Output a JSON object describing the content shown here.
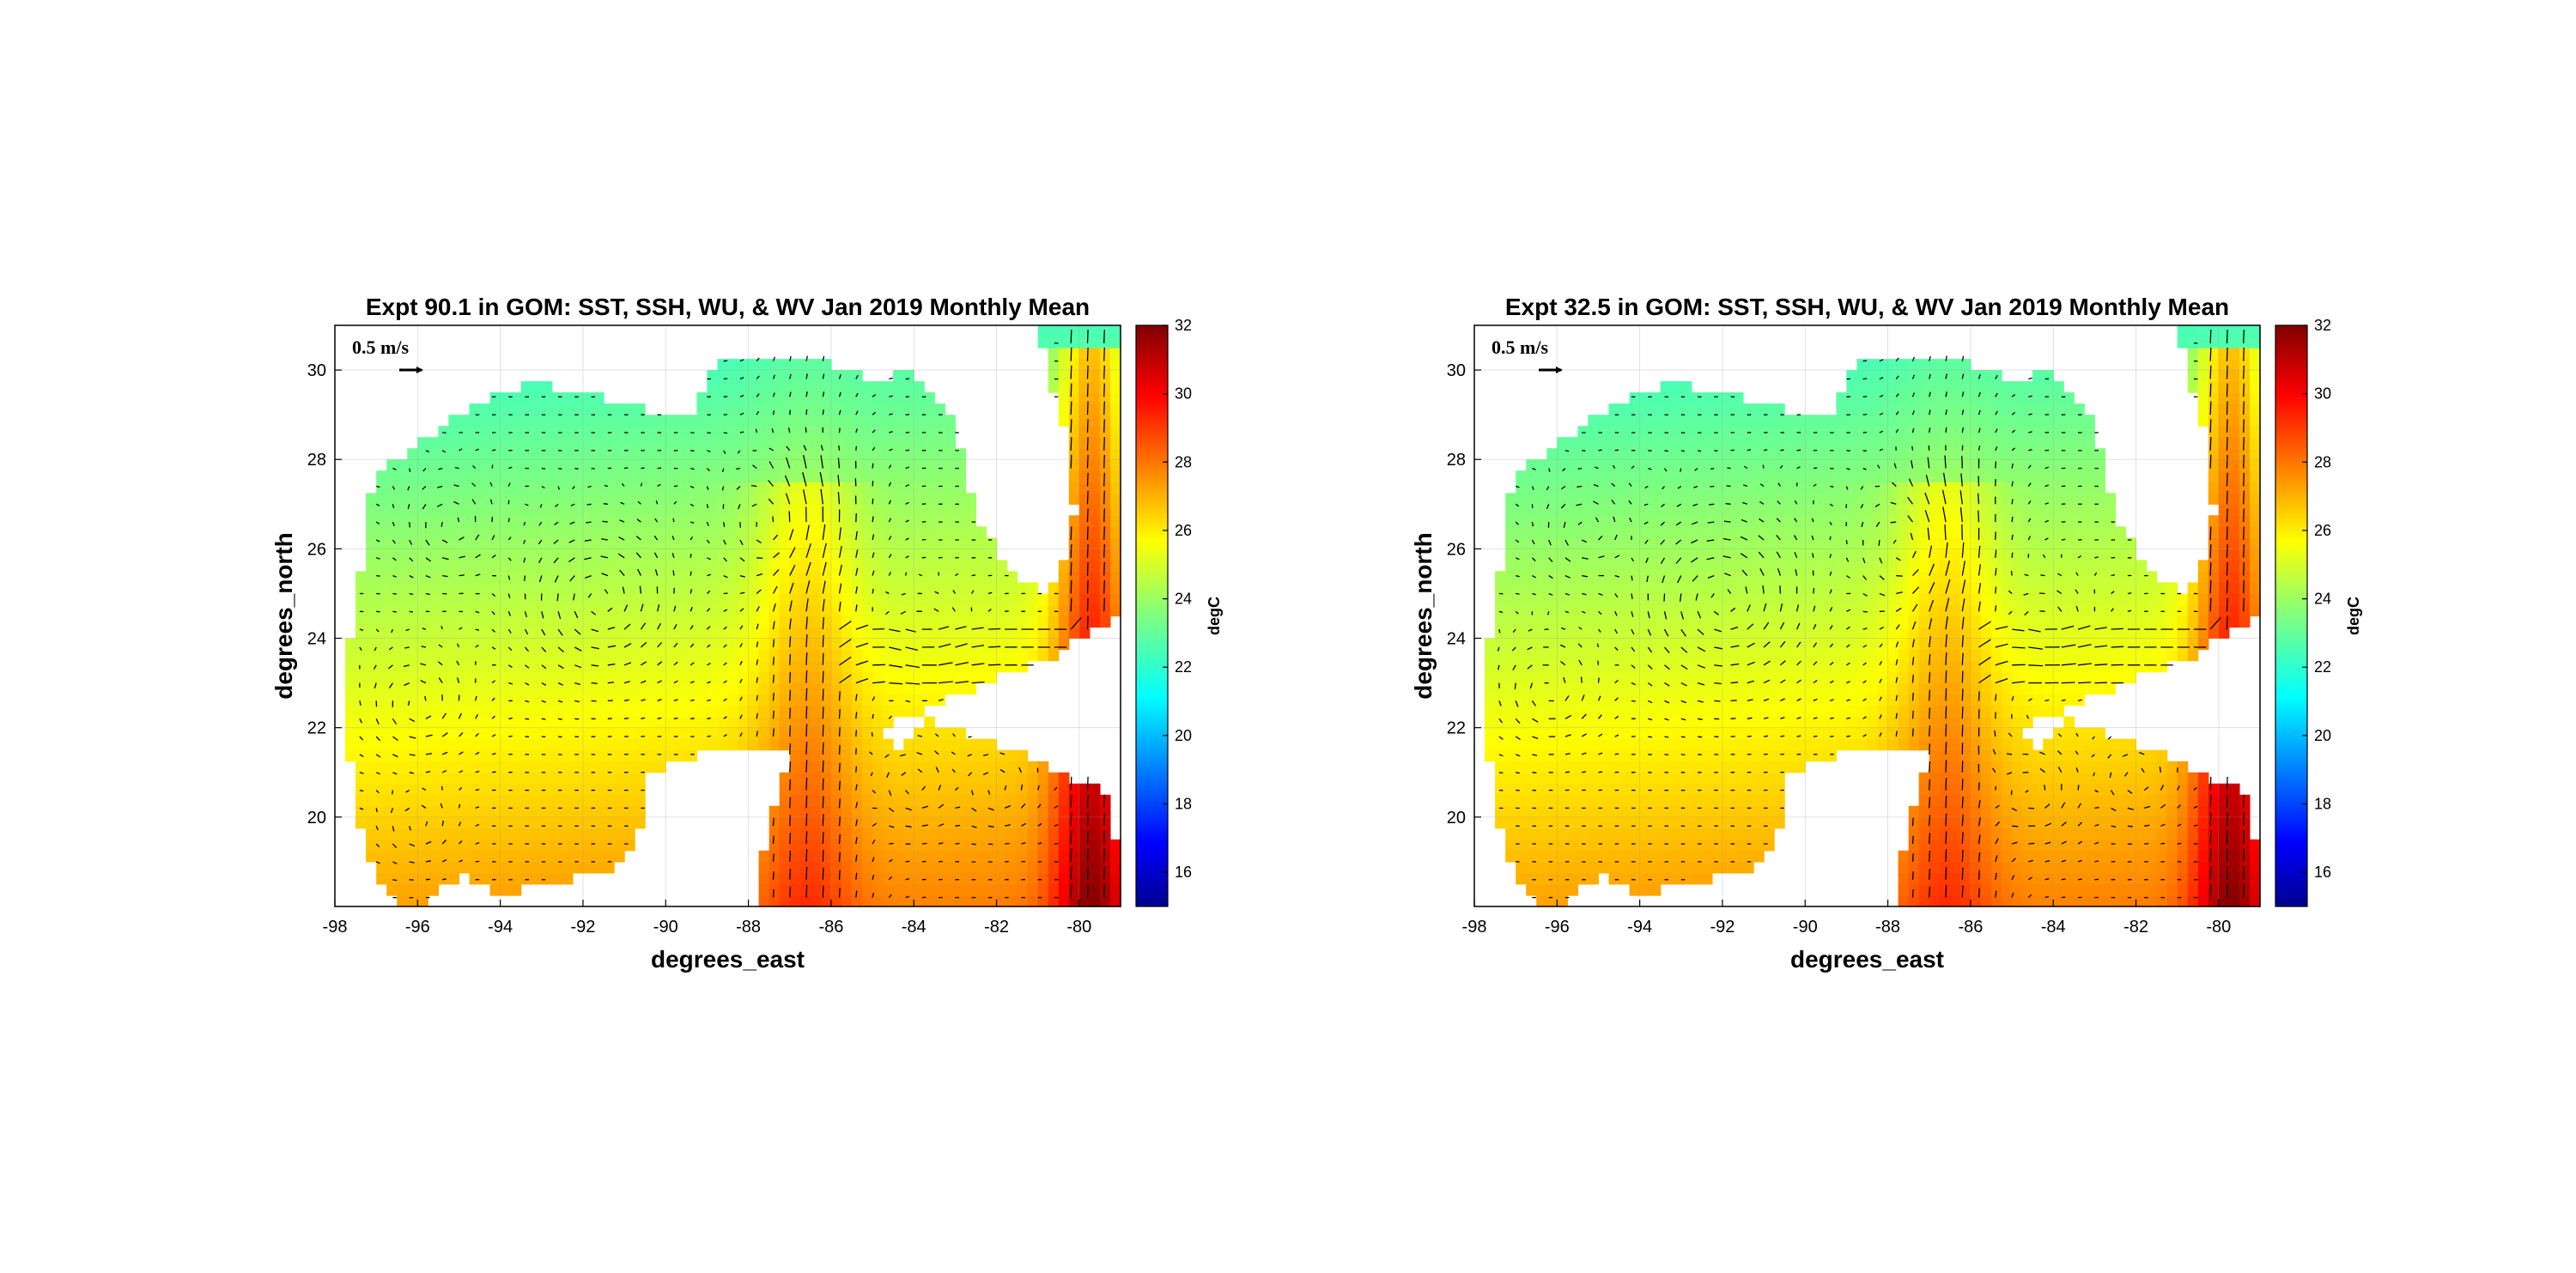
{
  "chart_data": [
    {
      "type": "heatmap",
      "title": "Expt 90.1 in GOM: SST, SSH, WU, & WV Jan 2019 Monthly Mean",
      "xlabel": "degrees_east",
      "ylabel": "degrees_north",
      "xlim": [
        -98,
        -79
      ],
      "ylim": [
        18,
        31
      ],
      "xticks": [
        "-98",
        "-96",
        "-94",
        "-92",
        "-90",
        "-88",
        "-86",
        "-84",
        "-82",
        "-80"
      ],
      "yticks": [
        "20",
        "22",
        "24",
        "26",
        "28",
        "30"
      ],
      "grid": true,
      "colorbar": {
        "label": "degC",
        "min": 15,
        "max": 32,
        "ticks": [
          "16",
          "18",
          "20",
          "22",
          "24",
          "26",
          "28",
          "30",
          "32"
        ],
        "colormap": "jet"
      },
      "vector_reference": "0.5 m/s",
      "overlay": "current vectors (quiver)"
    },
    {
      "type": "heatmap",
      "title": "Expt 32.5 in GOM: SST, SSH, WU, & WV Jan 2019 Monthly Mean",
      "xlabel": "degrees_east",
      "ylabel": "degrees_north",
      "xlim": [
        -98,
        -79
      ],
      "ylim": [
        18,
        31
      ],
      "xticks": [
        "-98",
        "-96",
        "-94",
        "-92",
        "-90",
        "-88",
        "-86",
        "-84",
        "-82",
        "-80"
      ],
      "yticks": [
        "20",
        "22",
        "24",
        "26",
        "28",
        "30"
      ],
      "grid": true,
      "colorbar": {
        "label": "degC",
        "min": 15,
        "max": 32,
        "ticks": [
          "16",
          "18",
          "20",
          "22",
          "24",
          "26",
          "28",
          "30",
          "32"
        ],
        "colormap": "jet"
      },
      "vector_reference": "0.5 m/s",
      "overlay": "current vectors (quiver)"
    }
  ],
  "colors": {
    "land": "#ffffff",
    "axes": "#000000",
    "vectors": "#000000"
  }
}
